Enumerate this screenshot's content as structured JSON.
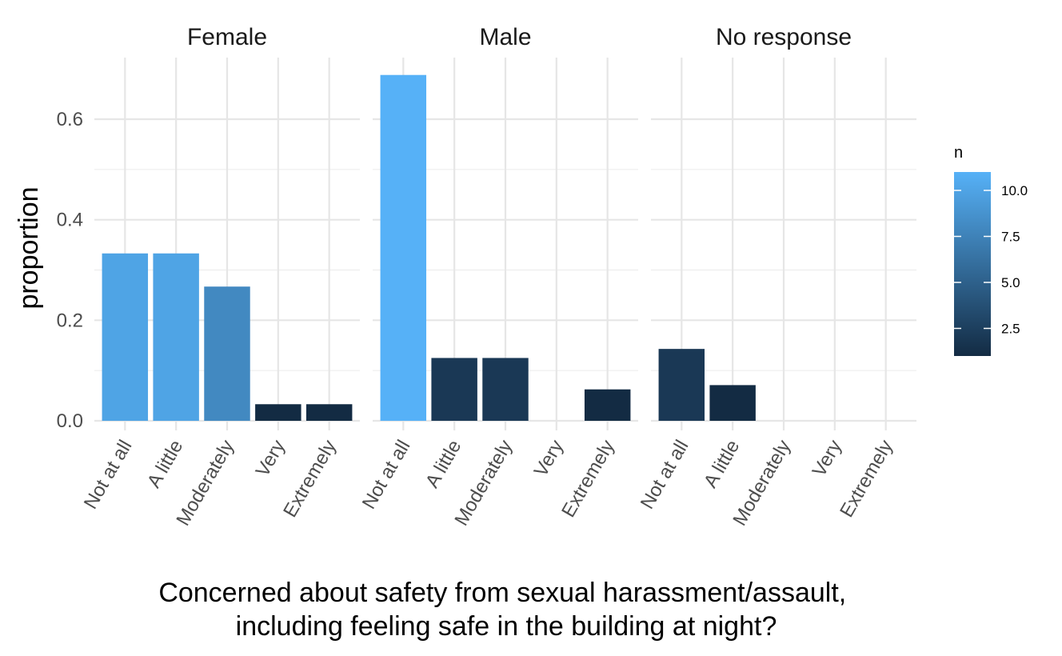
{
  "chart_data": {
    "type": "bar",
    "facet_by": "gender",
    "categories": [
      "Not at all",
      "A little",
      "Moderately",
      "Very",
      "Extremely"
    ],
    "panels": [
      {
        "label": "Female",
        "values": [
          0.333,
          0.333,
          0.267,
          0.033,
          0.033
        ],
        "n": [
          10,
          10,
          8,
          1,
          1
        ]
      },
      {
        "label": "Male",
        "values": [
          0.688,
          0.125,
          0.125,
          0,
          0.0625
        ],
        "n": [
          11,
          2,
          2,
          0,
          1
        ]
      },
      {
        "label": "No response",
        "values": [
          0.143,
          0.071,
          0,
          0,
          0
        ],
        "n": [
          2,
          1,
          0,
          0,
          0
        ]
      }
    ],
    "ylabel": "proportion",
    "xlabel": [
      "Concerned about safety from sexual harassment/assault,",
      "including feeling safe in the building at night?"
    ],
    "ylim": [
      0,
      0.7
    ],
    "yticks": [
      0,
      0.2,
      0.4,
      0.6
    ],
    "ytick_labels": [
      "0.0",
      "0.2",
      "0.4",
      "0.6"
    ],
    "grid": true,
    "legend": {
      "title": "n",
      "placement": "right",
      "range": [
        1,
        11
      ],
      "ticks": [
        2.5,
        5.0,
        7.5,
        10.0
      ],
      "tick_labels": [
        "2.5",
        "5.0",
        "7.5",
        "10.0"
      ],
      "color_low": "#132B43",
      "color_high": "#56B1F7"
    }
  }
}
